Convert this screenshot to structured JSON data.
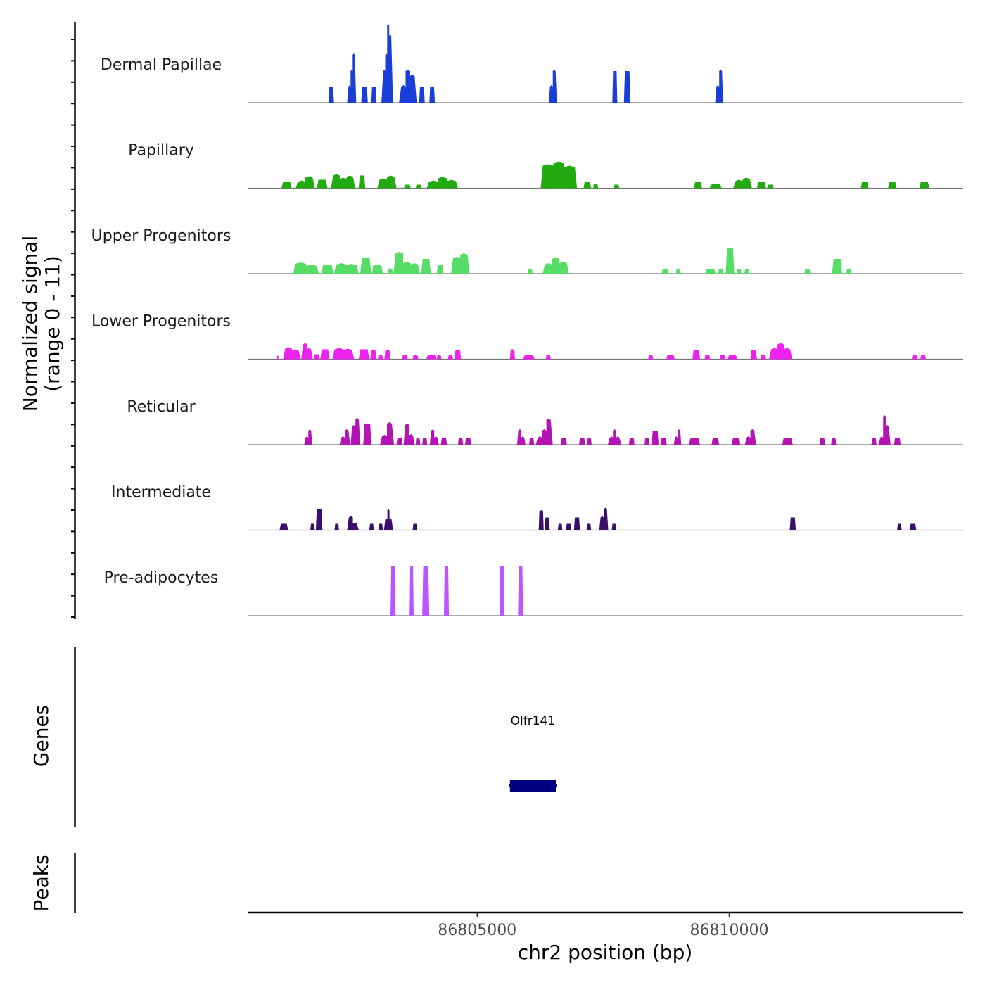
{
  "chart_data": {
    "type": "area",
    "title": "",
    "ylabel": "Normalized signal\n(range 0 - 11)",
    "ylabel_lines": [
      "Normalized signal",
      "(range 0 - 11)"
    ],
    "xlabel": "chr2 position (bp)",
    "ylim": [
      0,
      11
    ],
    "xlim": [
      86800447,
      86814640
    ],
    "x_ticks": [
      86805000,
      86810000
    ],
    "x_tick_labels": [
      "86805000",
      "86810000"
    ],
    "grid": false,
    "tracks": [
      {
        "name": "Dermal Papillae",
        "color": "#1a3fd9",
        "peaks": [
          [
            86802050,
            86802160,
            2.3
          ],
          [
            86802420,
            86802600,
            2.3,
            4.5,
            6.8
          ],
          [
            86802700,
            86802830,
            2.3
          ],
          [
            86802900,
            86803000,
            2.3
          ],
          [
            86803100,
            86803330,
            4.5,
            6.8,
            11,
            9.5
          ],
          [
            86803450,
            86803800,
            2.3,
            4.5,
            3.8
          ],
          [
            86803850,
            86803960,
            2.3
          ],
          [
            86804050,
            86804160,
            2.3
          ],
          [
            86806420,
            86806580,
            2.3,
            4.5
          ],
          [
            86807680,
            86807780,
            4.5
          ],
          [
            86807910,
            86808040,
            4.5
          ],
          [
            86809720,
            86809880,
            2.3,
            4.5
          ]
        ]
      },
      {
        "name": "Papillary",
        "color": "#22aa11",
        "peaks": [
          [
            86801120,
            86801320,
            0.9
          ],
          [
            86801400,
            86801780,
            0.9,
            1.5
          ],
          [
            86801820,
            86802030,
            1.2
          ],
          [
            86802100,
            86802580,
            1.8,
            1.3,
            1.6
          ],
          [
            86802650,
            86802780,
            1.8
          ],
          [
            86803020,
            86803400,
            1.2,
            1.6
          ],
          [
            86803550,
            86803680,
            0.5
          ],
          [
            86803780,
            86803900,
            0.5
          ],
          [
            86804000,
            86804620,
            0.9,
            1.4,
            1.0
          ],
          [
            86806260,
            86806980,
            3.2,
            3.6,
            3.0
          ],
          [
            86807110,
            86807260,
            0.9
          ],
          [
            86807300,
            86807400,
            0.6
          ],
          [
            86807710,
            86807820,
            0.5
          ],
          [
            86809300,
            86809460,
            0.9
          ],
          [
            86809610,
            86809850,
            0.5,
            0.5
          ],
          [
            86810080,
            86810450,
            1.0,
            1.3
          ],
          [
            86810550,
            86810730,
            0.9
          ],
          [
            86810750,
            86810880,
            0.5
          ],
          [
            86812610,
            86812760,
            0.9
          ],
          [
            86813150,
            86813320,
            0.9
          ],
          [
            86813770,
            86813970,
            0.9
          ]
        ]
      },
      {
        "name": "Upper Progenitors",
        "color": "#55dd66",
        "peaks": [
          [
            86801350,
            86801860,
            1.4,
            1.1
          ],
          [
            86801910,
            86802150,
            1.3
          ],
          [
            86802160,
            86802650,
            1.3,
            1.2
          ],
          [
            86802680,
            86802900,
            2.2
          ],
          [
            86802910,
            86803130,
            1.3
          ],
          [
            86803230,
            86803330,
            0.7
          ],
          [
            86803340,
            86803870,
            2.9,
            1.5,
            1.3
          ],
          [
            86803890,
            86804080,
            2.1
          ],
          [
            86804200,
            86804330,
            1.3
          ],
          [
            86804480,
            86804850,
            2.2,
            2.7
          ],
          [
            86806000,
            86806100,
            0.7
          ],
          [
            86806300,
            86806820,
            1.3,
            2.1,
            1.5
          ],
          [
            86808660,
            86808790,
            0.7
          ],
          [
            86808940,
            86809040,
            0.7
          ],
          [
            86809520,
            86809730,
            0.7
          ],
          [
            86809780,
            86809880,
            0.7
          ],
          [
            86809930,
            86810100,
            3.6
          ],
          [
            86810150,
            86810240,
            0.7
          ],
          [
            86810300,
            86810400,
            0.7
          ],
          [
            86811490,
            86811610,
            0.7
          ],
          [
            86812040,
            86812240,
            2.1
          ],
          [
            86812320,
            86812430,
            0.7
          ]
        ]
      },
      {
        "name": "Lower Progenitors",
        "color": "#ee22ee",
        "peaks": [
          [
            86801020,
            86801060,
            0.5
          ],
          [
            86801150,
            86801500,
            1.5,
            1.2
          ],
          [
            86801510,
            86801740,
            2.1,
            1.4
          ],
          [
            86801760,
            86801880,
            0.7
          ],
          [
            86801890,
            86802070,
            1.4
          ],
          [
            86802130,
            86802560,
            1.4,
            1.3
          ],
          [
            86802650,
            86802860,
            1.4
          ],
          [
            86802880,
            86803000,
            1.3
          ],
          [
            86803030,
            86803130,
            0.6
          ],
          [
            86803160,
            86803280,
            1.3
          ],
          [
            86803510,
            86803620,
            0.6
          ],
          [
            86803720,
            86803830,
            0.6
          ],
          [
            86803990,
            86804190,
            0.6
          ],
          [
            86804200,
            86804290,
            0.6
          ],
          [
            86804420,
            86804520,
            0.6
          ],
          [
            86804550,
            86804680,
            1.3
          ],
          [
            86805650,
            86805750,
            1.4
          ],
          [
            86805910,
            86806140,
            0.6
          ],
          [
            86806360,
            86806460,
            0.6
          ],
          [
            86808390,
            86808490,
            0.6
          ],
          [
            86808750,
            86808920,
            0.6
          ],
          [
            86809270,
            86809420,
            1.3
          ],
          [
            86809510,
            86809620,
            0.6
          ],
          [
            86809810,
            86809920,
            0.6
          ],
          [
            86809970,
            86810160,
            0.6
          ],
          [
            86810420,
            86810550,
            1.3
          ],
          [
            86810620,
            86810730,
            0.6
          ],
          [
            86810790,
            86811250,
            1.4,
            2.1,
            1.4
          ],
          [
            86813620,
            86813730,
            0.6
          ],
          [
            86813790,
            86813900,
            0.6
          ]
        ]
      },
      {
        "name": "Reticular",
        "color": "#b314b3",
        "peaks": [
          [
            86801570,
            86801730,
            1.0,
            2.0
          ],
          [
            86802270,
            86802480,
            1.0,
            2.0
          ],
          [
            86802490,
            86802680,
            2.6,
            3.6
          ],
          [
            86802740,
            86802900,
            3.0
          ],
          [
            86803070,
            86803350,
            1.2,
            3.0
          ],
          [
            86803400,
            86803520,
            1.0
          ],
          [
            86803540,
            86803760,
            2.8,
            1.3
          ],
          [
            86803780,
            86803870,
            1.0
          ],
          [
            86803910,
            86804010,
            1.0
          ],
          [
            86804060,
            86804240,
            2.0,
            1.0
          ],
          [
            86804280,
            86804400,
            1.0
          ],
          [
            86804620,
            86804720,
            1.0
          ],
          [
            86804760,
            86804880,
            1.0
          ],
          [
            86805790,
            86805960,
            2.0,
            1.0
          ],
          [
            86806030,
            86806130,
            1.0
          ],
          [
            86806160,
            86806500,
            1.0,
            2.0,
            3.5
          ],
          [
            86806660,
            86806780,
            1.0
          ],
          [
            86807020,
            86807140,
            1.0
          ],
          [
            86807180,
            86807270,
            1.0
          ],
          [
            86807590,
            86807860,
            1.0,
            2.0,
            1.0
          ],
          [
            86808010,
            86808120,
            1.0
          ],
          [
            86808320,
            86808420,
            1.0
          ],
          [
            86808460,
            86808600,
            2.0
          ],
          [
            86808640,
            86808760,
            1.0
          ],
          [
            86808900,
            86809050,
            1.0,
            2.0
          ],
          [
            86809200,
            86809420,
            1.0
          ],
          [
            86809650,
            86809800,
            1.0
          ],
          [
            86810050,
            86810220,
            1.0
          ],
          [
            86810310,
            86810530,
            1.0,
            2.0
          ],
          [
            86811050,
            86811260,
            1.0
          ],
          [
            86811790,
            86811900,
            1.0
          ],
          [
            86812020,
            86812120,
            1.0
          ],
          [
            86812820,
            86812920,
            1.0
          ],
          [
            86812960,
            86813200,
            1.0,
            4.0,
            2.6
          ],
          [
            86813270,
            86813400,
            1.0
          ]
        ]
      },
      {
        "name": "Intermediate",
        "color": "#3a0f6b",
        "peaks": [
          [
            86801080,
            86801250,
            0.9
          ],
          [
            86801690,
            86801780,
            0.9
          ],
          [
            86801800,
            86801930,
            3.0
          ],
          [
            86802170,
            86802260,
            0.9
          ],
          [
            86802420,
            86802650,
            1.8,
            0.9
          ],
          [
            86802860,
            86802950,
            0.9
          ],
          [
            86803040,
            86803130,
            0.9
          ],
          [
            86803150,
            86803330,
            1.5,
            2.8,
            1.5
          ],
          [
            86803720,
            86803810,
            0.9
          ],
          [
            86806220,
            86806320,
            2.8
          ],
          [
            86806340,
            86806440,
            1.8
          ],
          [
            86806600,
            86806690,
            0.9
          ],
          [
            86806760,
            86806870,
            0.9
          ],
          [
            86806920,
            86807040,
            1.8
          ],
          [
            86807170,
            86807260,
            0.9
          ],
          [
            86807420,
            86807600,
            1.8,
            3.0
          ],
          [
            86807670,
            86807760,
            0.9
          ],
          [
            86811200,
            86811320,
            1.8
          ],
          [
            86813330,
            86813420,
            0.9
          ],
          [
            86813580,
            86813710,
            0.9
          ]
        ]
      },
      {
        "name": "Pre-adipocytes",
        "color": "#bb55ff",
        "peaks": [
          [
            86803280,
            86803380,
            7.0
          ],
          [
            86803660,
            86803740,
            7.0
          ],
          [
            86803910,
            86804050,
            7.0
          ],
          [
            86804340,
            86804440,
            7.0
          ],
          [
            86805440,
            86805540,
            7.0
          ],
          [
            86805810,
            86805910,
            7.0
          ]
        ]
      }
    ],
    "genes": {
      "track_label": "Genes",
      "items": [
        {
          "name": "Olfr141",
          "start": 86805650,
          "end": 86806560,
          "color": "#000080"
        }
      ]
    },
    "peaks_track": {
      "track_label": "Peaks",
      "items": []
    }
  }
}
